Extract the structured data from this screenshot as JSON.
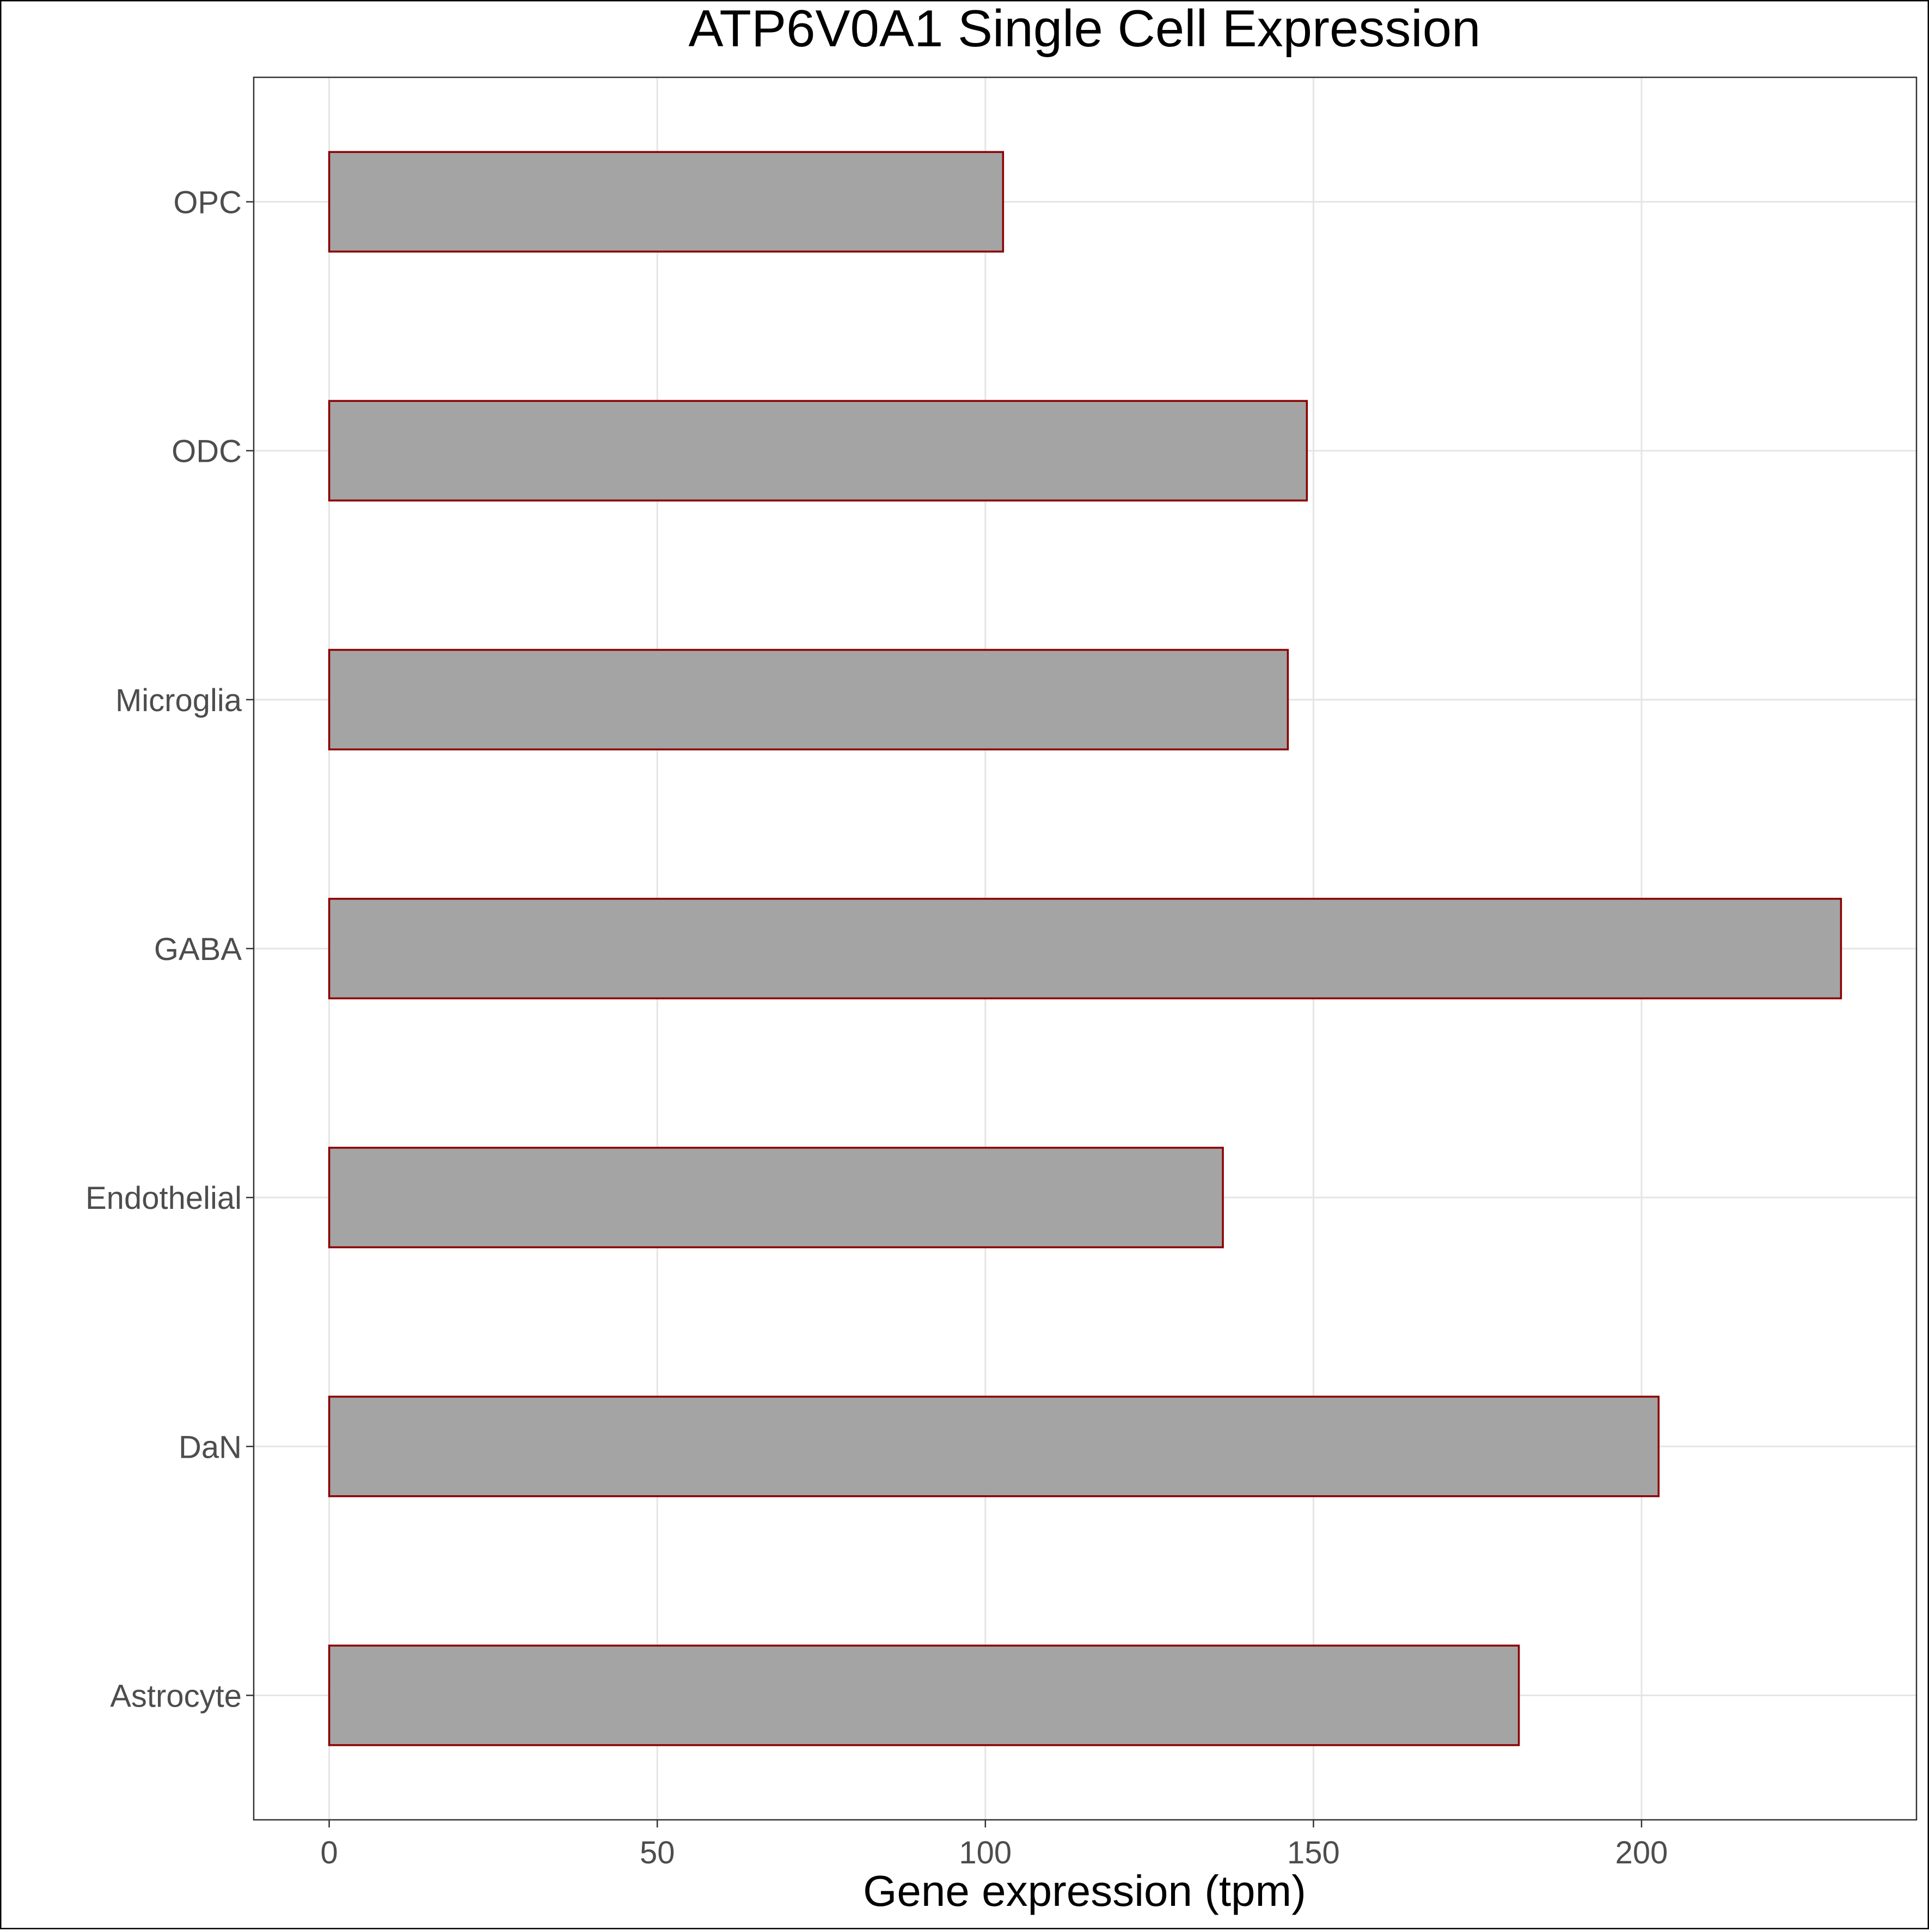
{
  "chart_data": {
    "type": "bar",
    "orientation": "horizontal",
    "title": "ATP6V0A1 Single Cell Expression",
    "xlabel": "Gene expression (tpm)",
    "ylabel": "",
    "categories": [
      "Astrocyte",
      "DaN",
      "Endothelial",
      "GABA",
      "Microglia",
      "ODC",
      "OPC"
    ],
    "values": [
      181.3,
      202.6,
      136.2,
      230.4,
      146.1,
      149.0,
      102.7
    ],
    "xlim": [
      -11.5,
      241.9
    ],
    "xticks": [
      0,
      50,
      100,
      150,
      200
    ],
    "grid": true,
    "legend": "none",
    "colors": {
      "bar_fill": "#a4a4a4",
      "bar_stroke": "#8b0000",
      "grid": "#e5e5e5",
      "tick_label": "#4d4d4d",
      "title": "#000000"
    }
  }
}
